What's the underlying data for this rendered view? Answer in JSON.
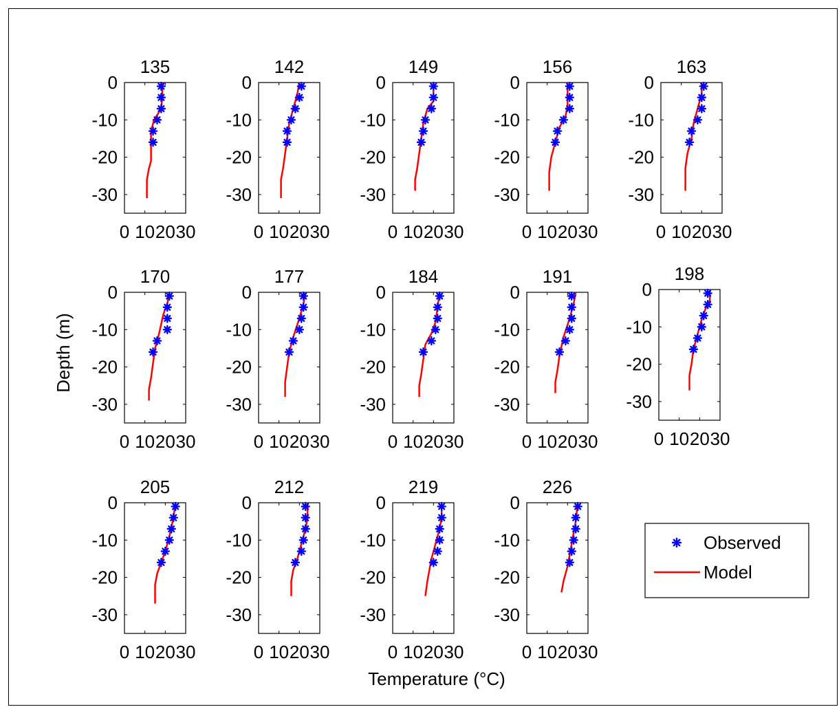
{
  "figure": {
    "ylabel": "Depth (m)",
    "xlabel": "Temperature (°C)",
    "xlim": [
      0,
      30
    ],
    "ylim": [
      -35,
      0
    ],
    "xticks": [
      0,
      10,
      20,
      30
    ],
    "yticks": [
      0,
      -10,
      -20,
      -30
    ],
    "colors": {
      "observed": "#0000ff",
      "model": "#ff0000",
      "axes": "#000000"
    },
    "legend": {
      "placement": "right",
      "items": [
        "Observed",
        "Model"
      ]
    }
  },
  "chart_data": [
    {
      "type": "line",
      "title": "135",
      "observed": [
        [
          18,
          -1
        ],
        [
          18,
          -4
        ],
        [
          18,
          -7
        ],
        [
          16,
          -10
        ],
        [
          14,
          -13
        ],
        [
          14,
          -16
        ]
      ],
      "model": [
        [
          18.5,
          0
        ],
        [
          18.5,
          -4
        ],
        [
          18,
          -7
        ],
        [
          14.5,
          -10
        ],
        [
          13,
          -13
        ],
        [
          13,
          -16
        ],
        [
          13,
          -19
        ],
        [
          13,
          -21
        ],
        [
          12,
          -23
        ],
        [
          11,
          -26
        ],
        [
          11,
          -31
        ]
      ]
    },
    {
      "type": "line",
      "title": "142",
      "observed": [
        [
          21,
          -1
        ],
        [
          20,
          -4
        ],
        [
          18,
          -7
        ],
        [
          16,
          -10
        ],
        [
          14,
          -13
        ],
        [
          14,
          -16
        ]
      ],
      "model": [
        [
          20,
          0
        ],
        [
          19,
          -3
        ],
        [
          17,
          -7
        ],
        [
          15,
          -11
        ],
        [
          14,
          -15
        ],
        [
          13,
          -19
        ],
        [
          12,
          -23
        ],
        [
          11,
          -26
        ],
        [
          11,
          -31
        ]
      ]
    },
    {
      "type": "line",
      "title": "149",
      "observed": [
        [
          20,
          -1
        ],
        [
          20,
          -4
        ],
        [
          19,
          -7
        ],
        [
          16,
          -10
        ],
        [
          15,
          -13
        ],
        [
          14,
          -16
        ]
      ],
      "model": [
        [
          20,
          0
        ],
        [
          20,
          -5
        ],
        [
          17,
          -7
        ],
        [
          15,
          -11
        ],
        [
          14,
          -15
        ],
        [
          13,
          -19
        ],
        [
          12,
          -23
        ],
        [
          11,
          -26
        ],
        [
          11,
          -29
        ]
      ]
    },
    {
      "type": "line",
      "title": "156",
      "observed": [
        [
          21,
          -1
        ],
        [
          21,
          -4
        ],
        [
          21,
          -7
        ],
        [
          18,
          -10
        ],
        [
          15,
          -13
        ],
        [
          14,
          -16
        ]
      ],
      "model": [
        [
          20,
          0
        ],
        [
          20,
          -6
        ],
        [
          19,
          -9
        ],
        [
          16,
          -12
        ],
        [
          14,
          -16
        ],
        [
          12,
          -20
        ],
        [
          11,
          -24
        ],
        [
          11,
          -26
        ],
        [
          11,
          -29
        ]
      ]
    },
    {
      "type": "line",
      "title": "163",
      "observed": [
        [
          21,
          -1
        ],
        [
          20,
          -4
        ],
        [
          20,
          -7
        ],
        [
          18,
          -10
        ],
        [
          15,
          -13
        ],
        [
          14,
          -16
        ]
      ],
      "model": [
        [
          20,
          0
        ],
        [
          20,
          -3
        ],
        [
          18,
          -7
        ],
        [
          16,
          -11
        ],
        [
          15,
          -15
        ],
        [
          13,
          -19
        ],
        [
          12,
          -23
        ],
        [
          12,
          -26
        ],
        [
          12,
          -29
        ]
      ]
    },
    {
      "type": "line",
      "title": "170",
      "observed": [
        [
          22,
          -1
        ],
        [
          21,
          -4
        ],
        [
          21,
          -7
        ],
        [
          21,
          -10
        ],
        [
          16,
          -13
        ],
        [
          14,
          -16
        ]
      ],
      "model": [
        [
          22,
          0
        ],
        [
          21,
          -3
        ],
        [
          19,
          -6
        ],
        [
          17,
          -11
        ],
        [
          15,
          -15
        ],
        [
          14,
          -19
        ],
        [
          13,
          -23
        ],
        [
          12,
          -26
        ],
        [
          12,
          -29
        ]
      ]
    },
    {
      "type": "line",
      "title": "177",
      "observed": [
        [
          22,
          -1
        ],
        [
          22,
          -4
        ],
        [
          21,
          -7
        ],
        [
          20,
          -10
        ],
        [
          17,
          -13
        ],
        [
          15,
          -16
        ]
      ],
      "model": [
        [
          23,
          0
        ],
        [
          22,
          -3
        ],
        [
          20,
          -7
        ],
        [
          17,
          -12
        ],
        [
          15,
          -16
        ],
        [
          14,
          -20
        ],
        [
          13,
          -24
        ],
        [
          13,
          -28
        ]
      ]
    },
    {
      "type": "line",
      "title": "184",
      "observed": [
        [
          23,
          -1
        ],
        [
          22,
          -4
        ],
        [
          22,
          -7
        ],
        [
          21,
          -10
        ],
        [
          19,
          -13
        ],
        [
          15,
          -16
        ]
      ],
      "model": [
        [
          23,
          0
        ],
        [
          22,
          -4
        ],
        [
          21,
          -8
        ],
        [
          19,
          -11
        ],
        [
          16,
          -14
        ],
        [
          15,
          -18
        ],
        [
          14,
          -22
        ],
        [
          13,
          -25
        ],
        [
          13,
          -28
        ]
      ]
    },
    {
      "type": "line",
      "title": "191",
      "observed": [
        [
          22,
          -1
        ],
        [
          22,
          -4
        ],
        [
          22,
          -7
        ],
        [
          21,
          -10
        ],
        [
          19,
          -13
        ],
        [
          16,
          -16
        ]
      ],
      "model": [
        [
          24,
          0
        ],
        [
          23,
          -3
        ],
        [
          21,
          -7
        ],
        [
          18,
          -12
        ],
        [
          16,
          -17
        ],
        [
          15,
          -21
        ],
        [
          14,
          -24
        ],
        [
          14,
          -27
        ]
      ]
    },
    {
      "type": "line",
      "title": "198",
      "observed": [
        [
          24,
          -1
        ],
        [
          24,
          -4
        ],
        [
          22,
          -7
        ],
        [
          21,
          -10
        ],
        [
          19,
          -13
        ],
        [
          17,
          -16
        ]
      ],
      "model": [
        [
          25,
          0
        ],
        [
          25,
          -3
        ],
        [
          23,
          -5
        ],
        [
          21,
          -8
        ],
        [
          19,
          -12
        ],
        [
          17,
          -16
        ],
        [
          16,
          -20
        ],
        [
          15,
          -23
        ],
        [
          15,
          -27
        ]
      ]
    },
    {
      "type": "line",
      "title": "205",
      "observed": [
        [
          25,
          -1
        ],
        [
          24,
          -4
        ],
        [
          23,
          -7
        ],
        [
          22,
          -10
        ],
        [
          20,
          -13
        ],
        [
          18,
          -16
        ]
      ],
      "model": [
        [
          25,
          0
        ],
        [
          24,
          -4
        ],
        [
          22,
          -9
        ],
        [
          20,
          -13
        ],
        [
          18,
          -16
        ],
        [
          16,
          -19
        ],
        [
          15,
          -22
        ],
        [
          15,
          -25
        ],
        [
          15,
          -27
        ]
      ]
    },
    {
      "type": "line",
      "title": "212",
      "observed": [
        [
          23,
          -1
        ],
        [
          23,
          -4
        ],
        [
          23,
          -7
        ],
        [
          22,
          -10
        ],
        [
          21,
          -13
        ],
        [
          18,
          -16
        ]
      ],
      "model": [
        [
          24,
          0
        ],
        [
          24,
          -4
        ],
        [
          23,
          -7
        ],
        [
          21,
          -11
        ],
        [
          19,
          -15
        ],
        [
          17,
          -18
        ],
        [
          16,
          -21
        ],
        [
          16,
          -25
        ]
      ]
    },
    {
      "type": "line",
      "title": "219",
      "observed": [
        [
          24,
          -1
        ],
        [
          24,
          -4
        ],
        [
          23,
          -7
        ],
        [
          23,
          -10
        ],
        [
          22,
          -13
        ],
        [
          20,
          -16
        ]
      ],
      "model": [
        [
          24,
          0
        ],
        [
          24,
          -4
        ],
        [
          23,
          -7
        ],
        [
          21,
          -11
        ],
        [
          19,
          -15
        ],
        [
          18,
          -18
        ],
        [
          17,
          -21
        ],
        [
          16,
          -25
        ]
      ]
    },
    {
      "type": "line",
      "title": "226",
      "observed": [
        [
          25,
          -1
        ],
        [
          24,
          -4
        ],
        [
          24,
          -7
        ],
        [
          23,
          -10
        ],
        [
          22,
          -13
        ],
        [
          21,
          -16
        ]
      ],
      "model": [
        [
          25,
          0
        ],
        [
          24,
          -5
        ],
        [
          23,
          -8
        ],
        [
          22,
          -11
        ],
        [
          21,
          -14
        ],
        [
          20,
          -17
        ],
        [
          18,
          -21
        ],
        [
          17,
          -24
        ]
      ]
    }
  ]
}
